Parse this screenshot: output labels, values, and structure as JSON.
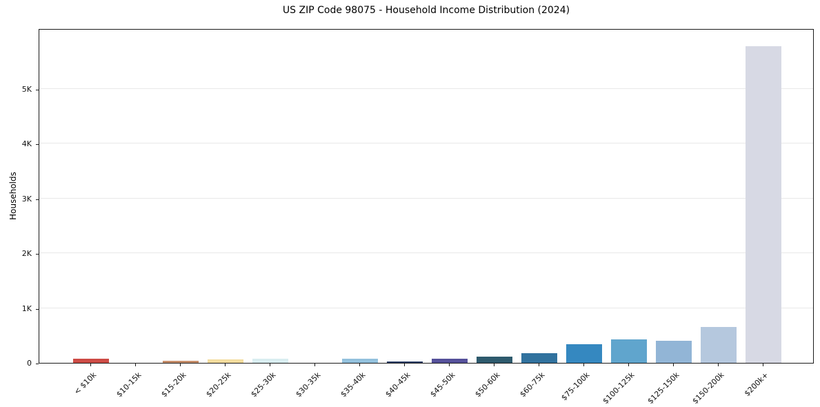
{
  "chart_data": {
    "type": "bar",
    "title": "US ZIP Code 98075 - Household Income Distribution (2024)",
    "xlabel": "",
    "ylabel": "Households",
    "categories": [
      "< $10k",
      "$10-15k",
      "$15-20k",
      "$20-25k",
      "$25-30k",
      "$30-35k",
      "$35-40k",
      "$40-45k",
      "$45-50k",
      "$50-60k",
      "$60-75k",
      "$75-100k",
      "$100-125k",
      "$125-150k",
      "$150-200k",
      "$200k+"
    ],
    "values": [
      80,
      0,
      40,
      60,
      70,
      0,
      70,
      25,
      70,
      110,
      180,
      340,
      430,
      400,
      660,
      5780
    ],
    "bar_colors": [
      "#cd4b45",
      "#cccccc",
      "#c68e6a",
      "#f3dc9e",
      "#d9edf0",
      "#cccccc",
      "#93c1dd",
      "#2c3e66",
      "#55509a",
      "#2e5a6d",
      "#31729e",
      "#3588c0",
      "#60a5cd",
      "#92b5d6",
      "#b5c8de",
      "#d7d9e4"
    ],
    "ytick_labels": [
      "0",
      "1K",
      "2K",
      "3K",
      "4K",
      "5K"
    ],
    "ytick_values": [
      0,
      1000,
      2000,
      3000,
      4000,
      5000
    ],
    "ylim": [
      0,
      6108
    ],
    "grid": "horizontal-only",
    "legend": "none",
    "background_color": "#ffffff",
    "axis_color": "#1a1a1a",
    "grid_color": "#e8e8e8",
    "text_color": "#111111"
  }
}
